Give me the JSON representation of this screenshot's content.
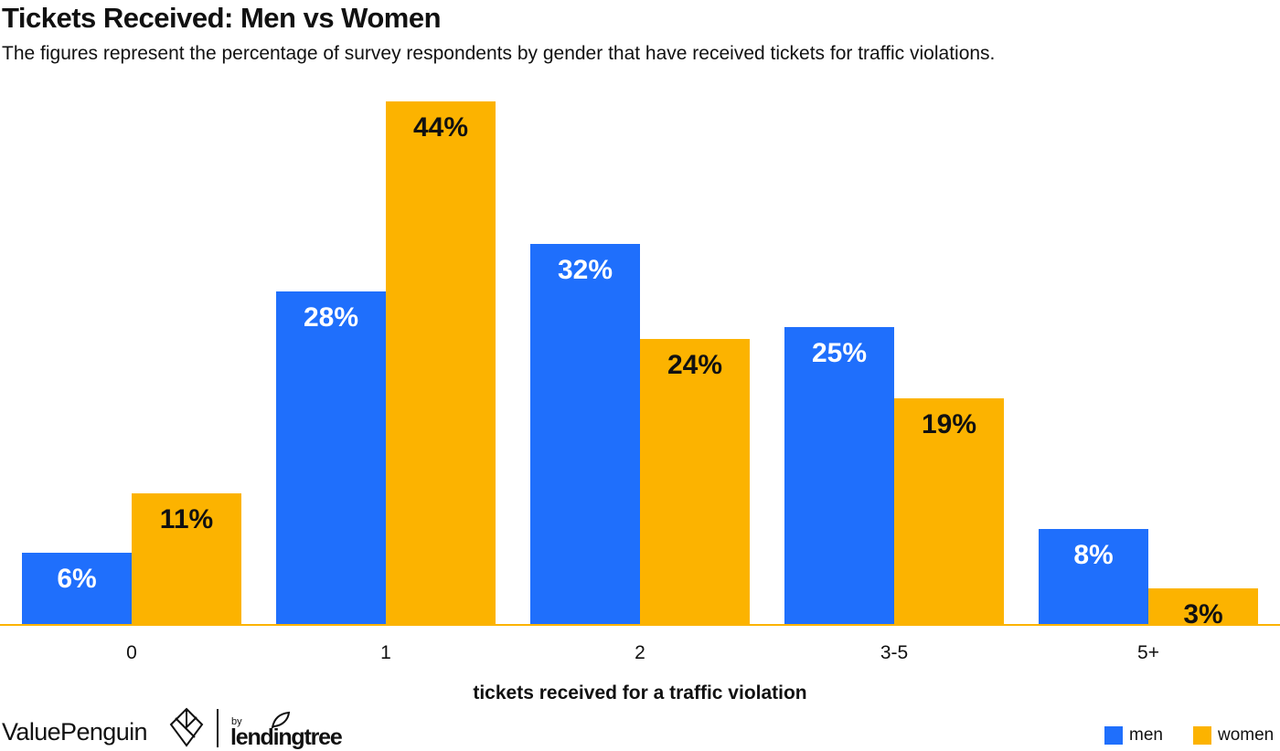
{
  "chart_data": {
    "type": "bar",
    "title": "Tickets Received: Men vs Women",
    "subtitle": "The figures represent the percentage of survey respondents by gender that have received tickets for traffic violations.",
    "xlabel": "tickets received for a traffic violation",
    "ylabel": "",
    "ylim": [
      0,
      44
    ],
    "grid": false,
    "legend_position": "bottom-right",
    "categories": [
      "0",
      "1",
      "2",
      "3-5",
      "5+"
    ],
    "series": [
      {
        "name": "men",
        "color": "#1f6ffc",
        "values": [
          6,
          28,
          32,
          25,
          8
        ],
        "labels": [
          "6%",
          "28%",
          "32%",
          "25%",
          "8%"
        ],
        "label_color": "#ffffff"
      },
      {
        "name": "women",
        "color": "#fcb300",
        "values": [
          11,
          44,
          24,
          19,
          3
        ],
        "labels": [
          "11%",
          "44%",
          "24%",
          "19%",
          "3%"
        ],
        "label_color": "#111111"
      }
    ]
  },
  "colors": {
    "axis": "#fcb300",
    "text": "#111111"
  },
  "branding": {
    "site": "ValuePenguin",
    "by": "by",
    "partner": "lendingtree",
    "site_logo_icon": "valuepenguin-logo-icon",
    "partner_logo_icon": "lendingtree-leaf-icon"
  }
}
